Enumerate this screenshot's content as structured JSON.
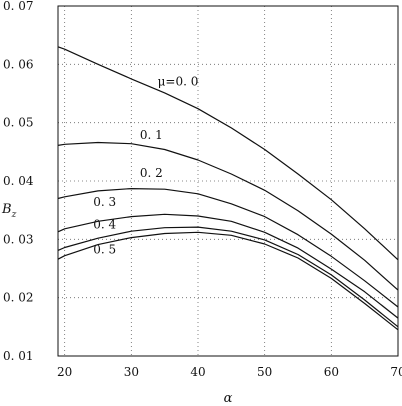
{
  "chart_data": {
    "type": "line",
    "title": "",
    "xlabel": "α",
    "ylabel": "B",
    "ylabel_sub": "z",
    "xlim": [
      19,
      70
    ],
    "ylim": [
      0.01,
      0.07
    ],
    "grid": true,
    "x_ticks": [
      {
        "value": 20,
        "label": "20"
      },
      {
        "value": 30,
        "label": "30"
      },
      {
        "value": 40,
        "label": "40"
      },
      {
        "value": 50,
        "label": "50"
      },
      {
        "value": 60,
        "label": "60"
      },
      {
        "value": 70,
        "label": "70"
      }
    ],
    "y_ticks": [
      {
        "value": 0.01,
        "label": "0. 01"
      },
      {
        "value": 0.02,
        "label": "0. 02"
      },
      {
        "value": 0.03,
        "label": "0. 03"
      },
      {
        "value": 0.04,
        "label": "0. 04"
      },
      {
        "value": 0.05,
        "label": "0. 05"
      },
      {
        "value": 0.06,
        "label": "0. 06"
      },
      {
        "value": 0.07,
        "label": "0. 07"
      }
    ],
    "x": [
      19,
      20,
      25,
      30,
      35,
      40,
      45,
      50,
      55,
      60,
      65,
      70
    ],
    "series": [
      {
        "name": "μ=0. 0",
        "label_at": [
          37,
          0.0564
        ],
        "values": [
          0.063,
          0.0626,
          0.06,
          0.0575,
          0.0551,
          0.0524,
          0.0491,
          0.0454,
          0.0412,
          0.0368,
          0.0318,
          0.0265
        ]
      },
      {
        "name": "0. 1",
        "label_at": [
          33,
          0.0472
        ],
        "values": [
          0.0461,
          0.0463,
          0.0466,
          0.0464,
          0.0454,
          0.0436,
          0.0412,
          0.0384,
          0.0349,
          0.0309,
          0.0264,
          0.0213
        ]
      },
      {
        "name": "0. 2",
        "label_at": [
          33,
          0.0407
        ],
        "values": [
          0.037,
          0.0373,
          0.0383,
          0.0387,
          0.0386,
          0.0378,
          0.0361,
          0.0339,
          0.0308,
          0.0271,
          0.0229,
          0.0184
        ]
      },
      {
        "name": "0. 3",
        "label_at": [
          26,
          0.0357
        ],
        "values": [
          0.0313,
          0.0318,
          0.0331,
          0.0339,
          0.0343,
          0.034,
          0.0331,
          0.0312,
          0.0285,
          0.0249,
          0.021,
          0.0165
        ]
      },
      {
        "name": "0. 4",
        "label_at": [
          26,
          0.0319
        ],
        "values": [
          0.0281,
          0.0286,
          0.0302,
          0.0314,
          0.032,
          0.0321,
          0.0314,
          0.0299,
          0.0274,
          0.0239,
          0.0196,
          0.015
        ]
      },
      {
        "name": "0. 5",
        "label_at": [
          26,
          0.0276
        ],
        "values": [
          0.0266,
          0.0272,
          0.0291,
          0.0303,
          0.031,
          0.0312,
          0.0307,
          0.0292,
          0.0268,
          0.0233,
          0.019,
          0.0145
        ]
      }
    ]
  }
}
